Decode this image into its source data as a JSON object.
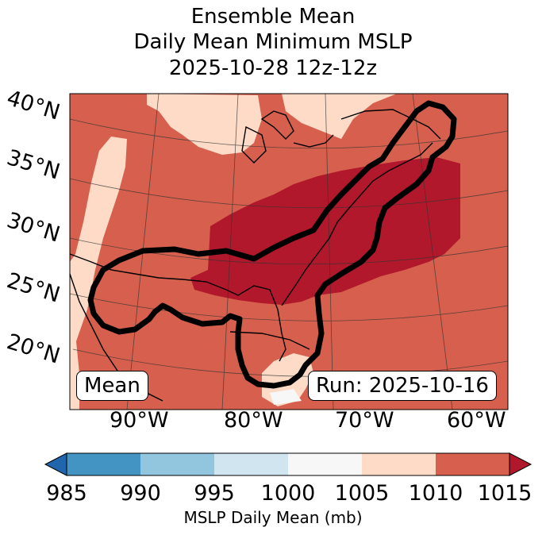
{
  "title": {
    "line1": "Ensemble Mean",
    "line2": "Daily Mean Minimum MSLP",
    "line3": "2025-10-28 12z-12z"
  },
  "map": {
    "lat_labels": [
      "40°N",
      "35°N",
      "30°N",
      "25°N",
      "20°N"
    ],
    "lon_labels": [
      "90°W",
      "80°W",
      "70°W",
      "60°W"
    ],
    "mean_badge": "Mean",
    "run_badge": "Run: 2025-10-16",
    "fill_colors": {
      "background": "#d6604d",
      "light": "#fddbc7",
      "dark": "#b2182b",
      "white": "#f7f7f7"
    }
  },
  "colorbar": {
    "label": "MSLP Daily Mean (mb)",
    "ticks": [
      "985",
      "990",
      "995",
      "1000",
      "1005",
      "1010",
      "1015"
    ],
    "bins": [
      {
        "range": "985-990",
        "color": "#4393c3"
      },
      {
        "range": "990-995",
        "color": "#92c5de"
      },
      {
        "range": "995-1000",
        "color": "#d1e5f0"
      },
      {
        "range": "1000-1005",
        "color": "#f7f7f7"
      },
      {
        "range": "1005-1010",
        "color": "#fddbc7"
      },
      {
        "range": "1010-1015",
        "color": "#d6604d"
      }
    ],
    "under_color": "#2166ac",
    "over_color": "#b2182b"
  }
}
